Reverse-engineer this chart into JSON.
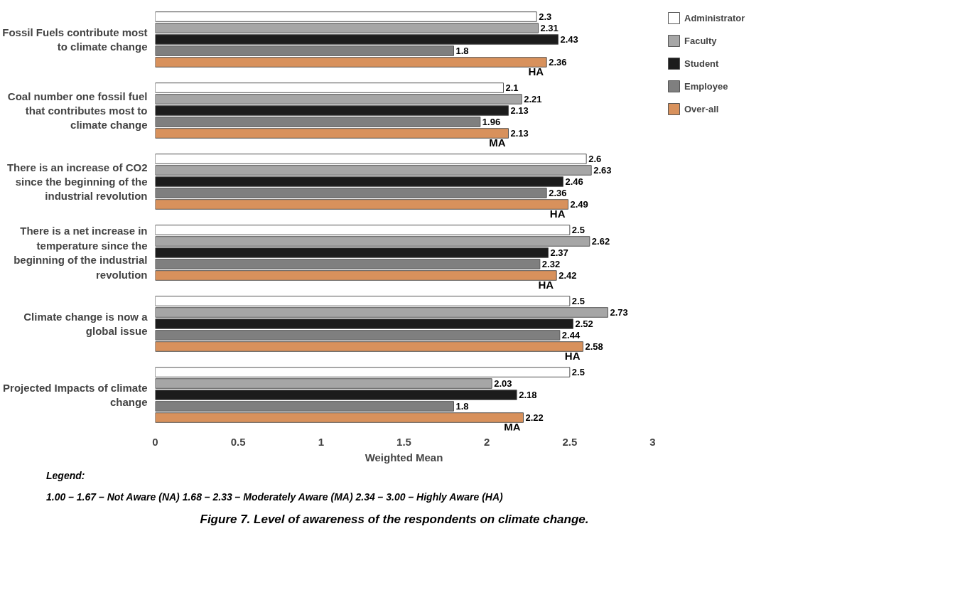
{
  "chart_data": {
    "type": "bar",
    "orientation": "horizontal",
    "xlabel": "Weighted Mean",
    "categories": [
      "Fossil Fuels contribute most to climate change",
      "Coal number one fossil fuel that contributes most to climate change",
      "There is an increase of CO2 since the beginning of the industrial revolution",
      "There is a net increase in temperature since the beginning of the industrial revolution",
      "Climate change is now a global issue",
      "Projected Impacts of climate change"
    ],
    "series": [
      {
        "name": "Administrator",
        "color": "#ffffff",
        "values": [
          2.3,
          2.1,
          2.6,
          2.5,
          2.5,
          2.5
        ]
      },
      {
        "name": "Faculty",
        "color": "#a6a6a6",
        "values": [
          2.31,
          2.21,
          2.63,
          2.62,
          2.73,
          2.03
        ]
      },
      {
        "name": "Student",
        "color": "#1c1c1c",
        "values": [
          2.43,
          2.13,
          2.46,
          2.37,
          2.52,
          2.18
        ]
      },
      {
        "name": "Employee",
        "color": "#7f7f7f",
        "values": [
          1.8,
          1.96,
          2.36,
          2.32,
          2.44,
          1.8
        ]
      },
      {
        "name": "Over-all",
        "color": "#d8915c",
        "values": [
          2.36,
          2.13,
          2.49,
          2.42,
          2.58,
          2.22
        ]
      }
    ],
    "xlim": [
      0,
      3
    ],
    "xticks": [
      0,
      0.5,
      1,
      1.5,
      2,
      2.5,
      3
    ],
    "data_labels": true,
    "legend": "right",
    "annotations": [
      "HA",
      "MA",
      "HA",
      "HA",
      "HA",
      "MA",
      "Legend:",
      "1.00 – 1.67 – Not Aware (NA)   1.68 – 2.33 – Moderately Aware (MA)   2.34 – 3.00 – Highly Aware (HA)",
      "Figure 7. Level of awareness of the respondents on climate change."
    ]
  }
}
